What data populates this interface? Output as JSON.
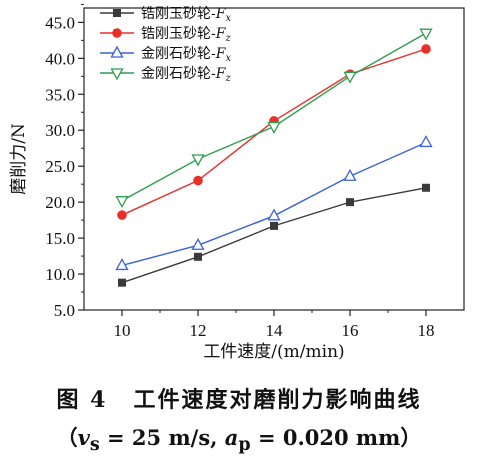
{
  "chart_data": {
    "type": "line",
    "x": [
      10,
      12,
      14,
      16,
      18
    ],
    "xlabel": "工件速度/(m/min)",
    "ylabel": "磨削力/N",
    "xlim": [
      9,
      19
    ],
    "ylim": [
      5,
      47
    ],
    "xticks": [
      "10",
      "12",
      "14",
      "16",
      "18"
    ],
    "yticks": [
      "5.0",
      "10.0",
      "15.0",
      "20.0",
      "25.0",
      "30.0",
      "35.0",
      "40.0",
      "45.0"
    ],
    "legend_position": "top-left",
    "series": [
      {
        "name_main": "锆刚玉砂轮-",
        "name_var": "F",
        "name_sub": "x",
        "marker": "filled-square",
        "color": "#3a3a3a",
        "values": [
          8.8,
          12.4,
          16.7,
          20.0,
          22.0
        ]
      },
      {
        "name_main": "锆刚玉砂轮-",
        "name_var": "F",
        "name_sub": "z",
        "marker": "filled-circle",
        "color": "#e8302a",
        "values": [
          18.2,
          23.0,
          31.3,
          37.8,
          41.3
        ]
      },
      {
        "name_main": "金刚石砂轮-",
        "name_var": "F",
        "name_sub": "x",
        "marker": "triangle-up",
        "color": "#3b63d6",
        "values": [
          11.2,
          14.0,
          18.1,
          23.6,
          28.3
        ]
      },
      {
        "name_main": "金刚石砂轮-",
        "name_var": "F",
        "name_sub": "z",
        "marker": "triangle-down",
        "color": "#2f9e4f",
        "values": [
          20.2,
          26.0,
          30.5,
          37.5,
          43.5
        ]
      }
    ]
  },
  "caption": {
    "figure_label": "图 4",
    "title": "工件速度对磨削力影响曲线",
    "conditions": "（v_s = 25 m/s, a_p = 0.020 mm）",
    "v": "v",
    "s": "s",
    "vs_value": "= 25 m/s",
    "a": "a",
    "p": "p",
    "ap_value": "= 0.020 mm"
  }
}
